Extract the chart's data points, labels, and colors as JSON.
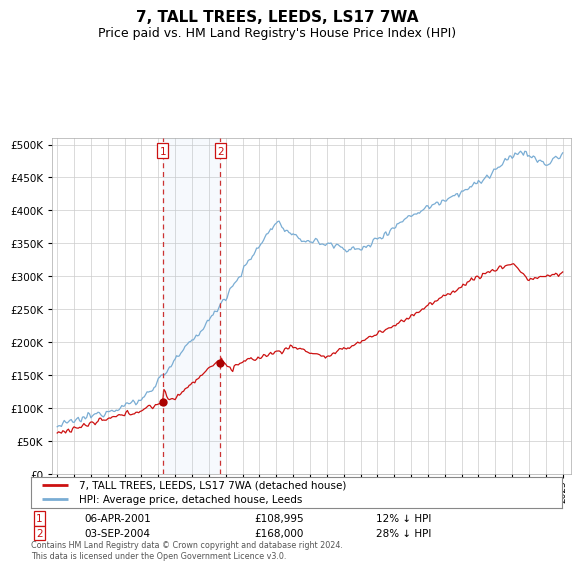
{
  "title": "7, TALL TREES, LEEDS, LS17 7WA",
  "subtitle": "Price paid vs. HM Land Registry's House Price Index (HPI)",
  "title_fontsize": 11,
  "subtitle_fontsize": 9,
  "background_color": "#ffffff",
  "plot_bg_color": "#ffffff",
  "grid_color": "#cccccc",
  "hpi_color": "#7aadd4",
  "price_color": "#cc1111",
  "marker_color": "#aa0000",
  "purchase1_x": 2001.27,
  "purchase1_y": 108995,
  "purchase2_x": 2004.67,
  "purchase2_y": 168000,
  "purchase1_date": "06-APR-2001",
  "purchase1_price": "£108,995",
  "purchase1_hpi": "12% ↓ HPI",
  "purchase2_date": "03-SEP-2004",
  "purchase2_price": "£168,000",
  "purchase2_hpi": "28% ↓ HPI",
  "legend_label1": "7, TALL TREES, LEEDS, LS17 7WA (detached house)",
  "legend_label2": "HPI: Average price, detached house, Leeds",
  "footer": "Contains HM Land Registry data © Crown copyright and database right 2024.\nThis data is licensed under the Open Government Licence v3.0.",
  "ylim": [
    0,
    510000
  ],
  "yticks": [
    0,
    50000,
    100000,
    150000,
    200000,
    250000,
    300000,
    350000,
    400000,
    450000,
    500000
  ],
  "xmin": 1994.7,
  "xmax": 2025.5
}
